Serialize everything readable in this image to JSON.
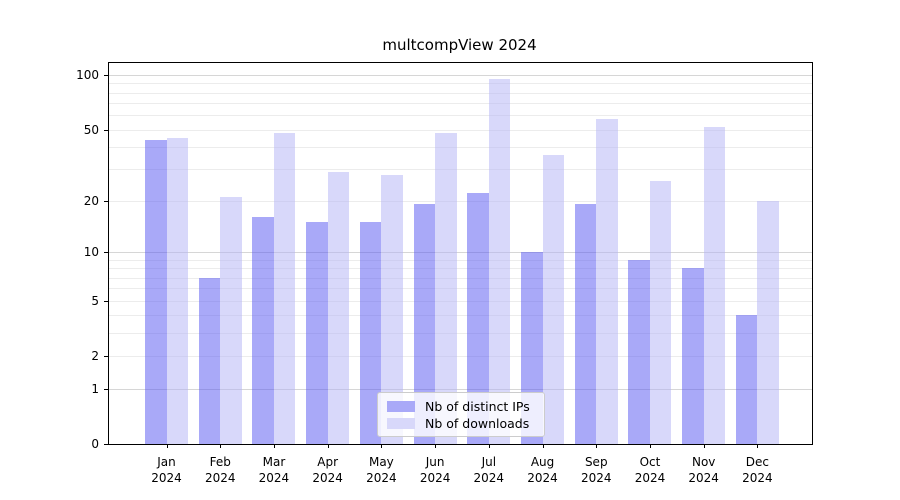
{
  "figure": {
    "title": "multcompView 2024"
  },
  "chart_data": {
    "type": "bar",
    "title": "multcompView 2024",
    "year_label": "2024",
    "categories": [
      "Jan",
      "Feb",
      "Mar",
      "Apr",
      "May",
      "Jun",
      "Jul",
      "Aug",
      "Sep",
      "Oct",
      "Nov",
      "Dec"
    ],
    "series": [
      {
        "name": "Nb of distinct IPs",
        "color": "#a9a9f8",
        "values": [
          44,
          7,
          16,
          15,
          15,
          19,
          22,
          10,
          19,
          9,
          8,
          4
        ]
      },
      {
        "name": "Nb of downloads",
        "color": "#d8d8fa",
        "values": [
          45,
          21,
          48,
          29,
          28,
          48,
          95,
          36,
          57,
          26,
          52,
          20
        ]
      }
    ],
    "y_axis": {
      "scale": "log10(1+x)",
      "tick_labels": [
        0,
        1,
        2,
        5,
        10,
        20,
        50,
        100
      ],
      "major_gridlines": [
        1,
        10,
        100
      ],
      "minor_gridlines": [
        2,
        3,
        4,
        5,
        6,
        7,
        8,
        9,
        20,
        30,
        40,
        50,
        60,
        70,
        80,
        90
      ],
      "range": [
        0,
        117
      ]
    },
    "x_axis": {
      "tick_label_line1": [
        "Jan",
        "Feb",
        "Mar",
        "Apr",
        "May",
        "Jun",
        "Jul",
        "Aug",
        "Sep",
        "Oct",
        "Nov",
        "Dec"
      ],
      "tick_label_line2": "2024"
    },
    "legend": {
      "position": "bottom-center",
      "entries": [
        "Nb of distinct IPs",
        "Nb of downloads"
      ]
    },
    "grid": true
  },
  "colors": {
    "ips_bar": "#a9a9f8",
    "downloads_bar": "#d8d8fa",
    "grid_minor": "#ececec",
    "grid_major": "#d6d6d6",
    "axis": "#000000",
    "legend_border": "#cccccc",
    "title_text": "#000000"
  }
}
